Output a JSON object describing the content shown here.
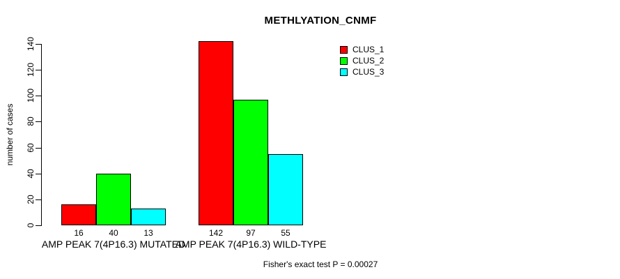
{
  "chart_data": {
    "type": "bar",
    "title": "METHLYATION_CNMF",
    "ylabel": "number of cases",
    "xlabel": "",
    "ylim": [
      0,
      140
    ],
    "yticks": [
      0,
      20,
      40,
      60,
      80,
      100,
      120,
      140
    ],
    "grid": false,
    "legend_position": "top-right",
    "categories": [
      "AMP PEAK 7(4P16.3) MUTATED",
      "AMP PEAK 7(4P16.3) WILD-TYPE"
    ],
    "series": [
      {
        "name": "CLUS_1",
        "color": "#FF0000",
        "values": [
          16,
          142
        ]
      },
      {
        "name": "CLUS_2",
        "color": "#00FF00",
        "values": [
          40,
          97
        ]
      },
      {
        "name": "CLUS_3",
        "color": "#00FFFF",
        "values": [
          13,
          55
        ]
      }
    ],
    "bar_value_labels": [
      [
        16,
        40,
        13
      ],
      [
        142,
        97,
        55
      ]
    ],
    "annotation": "Fisher's exact test P = 0.00027"
  }
}
